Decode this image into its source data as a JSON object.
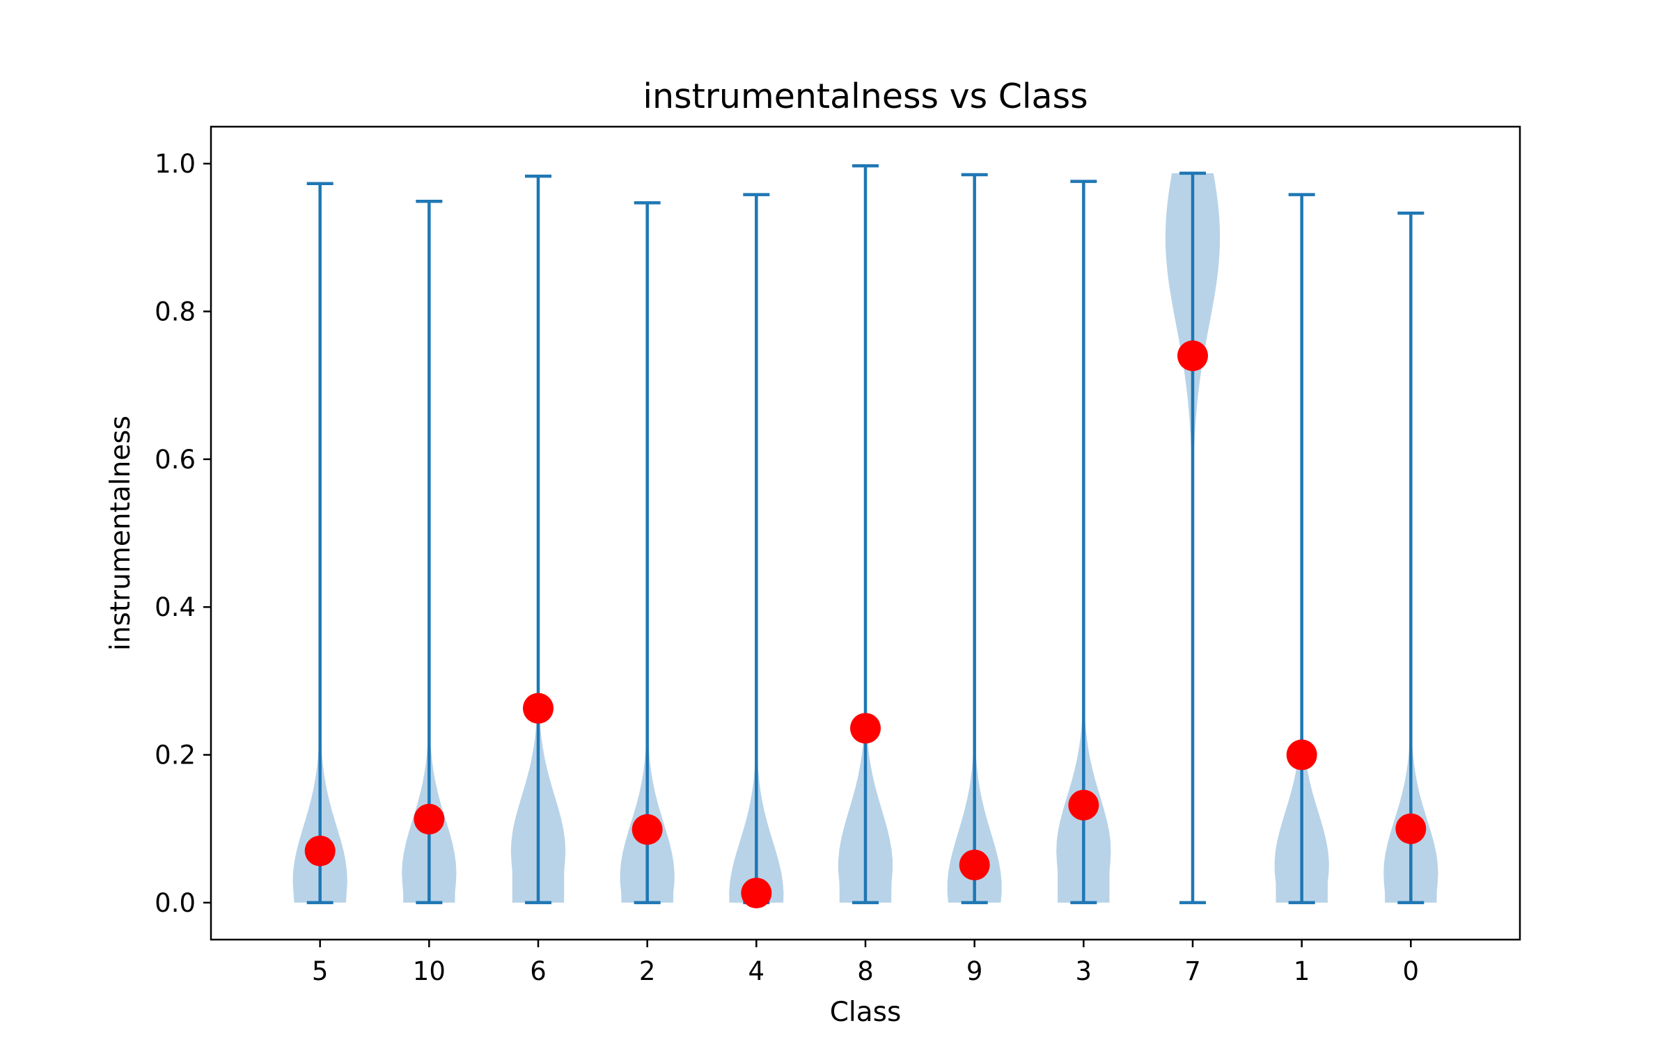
{
  "chart_data": {
    "type": "violin",
    "title": "instrumentalness vs Class",
    "xlabel": "Class",
    "ylabel": "instrumentalness",
    "ylim": [
      -0.05,
      1.05
    ],
    "yticks": [
      "0.0",
      "0.2",
      "0.4",
      "0.6",
      "0.8",
      "1.0"
    ],
    "ytick_values": [
      0.0,
      0.2,
      0.4,
      0.6,
      0.8,
      1.0
    ],
    "categories": [
      "5",
      "10",
      "6",
      "2",
      "4",
      "8",
      "9",
      "3",
      "7",
      "1",
      "0"
    ],
    "series": [
      {
        "name": "distribution",
        "min": [
          0.0,
          0.0,
          0.0,
          0.0,
          0.0,
          0.0,
          0.0,
          0.0,
          0.0,
          0.0,
          0.0
        ],
        "max": [
          0.973,
          0.949,
          0.983,
          0.947,
          0.958,
          0.997,
          0.985,
          0.976,
          0.987,
          0.958,
          0.933
        ],
        "density_peak": [
          0.03,
          0.04,
          0.07,
          0.035,
          0.01,
          0.05,
          0.02,
          0.07,
          0.9,
          0.05,
          0.04
        ]
      },
      {
        "name": "mean",
        "values": [
          0.07,
          0.113,
          0.263,
          0.099,
          0.013,
          0.236,
          0.051,
          0.132,
          0.74,
          0.2,
          0.1
        ]
      }
    ],
    "colors": {
      "violin_fill": "#b8d3e8",
      "line": "#1f77b4",
      "mean_marker": "#ff0000"
    },
    "grid": false
  }
}
